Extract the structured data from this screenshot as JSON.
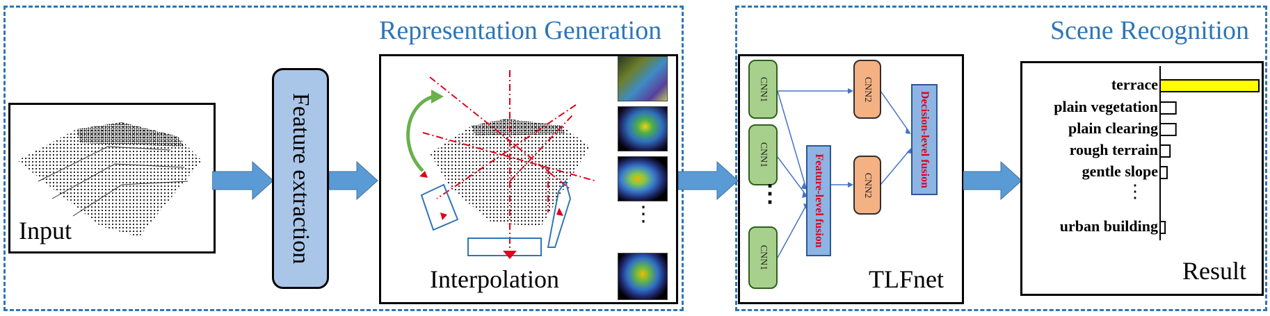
{
  "regions": {
    "representation_title": "Representation Generation",
    "scene_title": "Scene Recognition"
  },
  "input": {
    "label": "Input"
  },
  "feature_extraction": {
    "label": "Feature extraction"
  },
  "interpolation": {
    "label": "Interpolation",
    "more": "⋮"
  },
  "tlfnet": {
    "label": "TLFnet",
    "cnn1": "CNN1",
    "cnn2": "CNN2",
    "feature_fusion": "Feature-level fusion",
    "decision_fusion": "Decision-level fusion",
    "more": "⋮"
  },
  "result": {
    "label": "Result",
    "classes": [
      "terrace",
      "plain vegetation",
      "plain clearing",
      "rough terrain",
      "gentle slope",
      "urban building"
    ],
    "bar_values": [
      1.0,
      0.16,
      0.16,
      0.1,
      0.07,
      0.05
    ],
    "more": "⋮",
    "highlight_color": "#ffff00"
  },
  "colors": {
    "region_border": "#2e75b6",
    "arrow": "#5b9bd5",
    "cnn1_fill": "#a8d08d",
    "cnn2_fill": "#f4b183",
    "fusion_fill": "#8eb4e3",
    "fusion_text": "#e0001a"
  }
}
